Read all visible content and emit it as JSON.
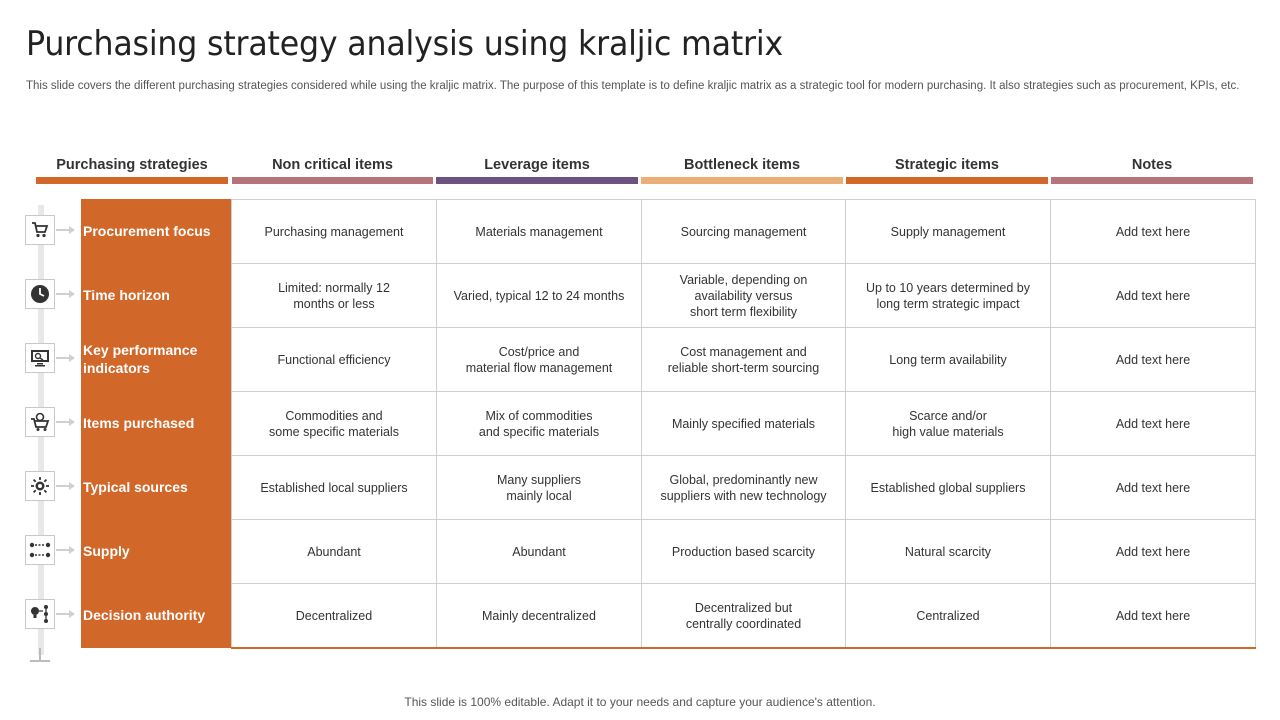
{
  "title": "Purchasing strategy analysis using kraljic matrix",
  "subtitle": "This slide covers the different purchasing strategies considered while using the kraljic matrix. The purpose of this template is to define kraljic matrix as a strategic tool for modern purchasing. It also strategies such as procurement, KPIs, etc.",
  "headers": [
    {
      "label": "Purchasing strategies",
      "color": "#d2672a"
    },
    {
      "label": "Non critical items",
      "color": "#b5737b"
    },
    {
      "label": "Leverage items",
      "color": "#6a5380"
    },
    {
      "label": "Bottleneck items",
      "color": "#ebae77"
    },
    {
      "label": "Strategic items",
      "color": "#d2672a"
    },
    {
      "label": "Notes",
      "color": "#b5737b"
    }
  ],
  "rows": [
    {
      "label": "Procurement focus",
      "icon": "cart-icon",
      "cells": [
        "Purchasing management",
        "Materials management",
        "Sourcing management",
        "Supply management",
        "Add text here"
      ]
    },
    {
      "label": "Time horizon",
      "icon": "clock-icon",
      "cells": [
        "Limited: normally 12\nmonths or less",
        "Varied, typical 12 to 24 months",
        "Variable, depending on\navailability versus\nshort term flexibility",
        "Up to 10 years determined by\nlong term strategic impact",
        "Add text here"
      ]
    },
    {
      "label": "Key performance indicators",
      "icon": "monitor-search-icon",
      "cells": [
        "Functional efficiency",
        "Cost/price and\nmaterial flow management",
        "Cost management and\nreliable short-term sourcing",
        "Long term availability",
        "Add text here"
      ]
    },
    {
      "label": "Items purchased",
      "icon": "shopping-cart-icon",
      "cells": [
        "Commodities and\nsome specific materials",
        "Mix of commodities\nand specific materials",
        "Mainly specified materials",
        "Scarce and/or\nhigh value  materials",
        "Add text here"
      ]
    },
    {
      "label": "Typical sources",
      "icon": "sun-gear-icon",
      "cells": [
        "Established local suppliers",
        "Many suppliers\nmainly local",
        "Global, predominantly new\nsuppliers with new technology",
        "Established global suppliers",
        "Add text here"
      ]
    },
    {
      "label": "Supply",
      "icon": "flow-nodes-icon",
      "cells": [
        "Abundant",
        "Abundant",
        "Production based scarcity",
        "Natural scarcity",
        "Add text here"
      ]
    },
    {
      "label": "Decision authority",
      "icon": "idea-steps-icon",
      "cells": [
        "Decentralized",
        "Mainly decentralized",
        "Decentralized but\ncentrally coordinated",
        "Centralized",
        "Add text here"
      ]
    }
  ],
  "footer": "This slide is 100% editable. Adapt it to your needs and capture your audience's attention."
}
